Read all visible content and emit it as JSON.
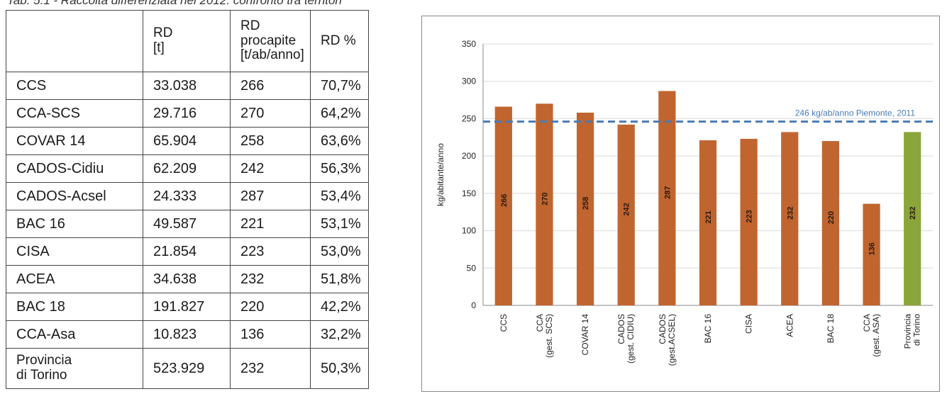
{
  "caption": "Tab. 5.1 - Raccolta differenziata nel 2012: confronto tra territori",
  "table": {
    "headers": [
      "",
      "RD\n[t]",
      "RD\nprocapite\n[t/ab/anno]",
      "RD %"
    ],
    "rows": [
      [
        "CCS",
        "33.038",
        "266",
        "70,7%"
      ],
      [
        "CCA-SCS",
        "29.716",
        "270",
        "64,2%"
      ],
      [
        "COVAR 14",
        "65.904",
        "258",
        "63,6%"
      ],
      [
        "CADOS-Cidiu",
        "62.209",
        "242",
        "56,3%"
      ],
      [
        "CADOS-Acsel",
        "24.333",
        "287",
        "53,4%"
      ],
      [
        "BAC 16",
        "49.587",
        "221",
        "53,1%"
      ],
      [
        "CISA",
        "21.854",
        "223",
        "53,0%"
      ],
      [
        "ACEA",
        "34.638",
        "232",
        "51,8%"
      ],
      [
        "BAC 18",
        "191.827",
        "220",
        "42,2%"
      ],
      [
        "CCA-Asa",
        "10.823",
        "136",
        "32,2%"
      ],
      [
        "Provincia\ndi Torino",
        "523.929",
        "232",
        "50,3%"
      ]
    ]
  },
  "chart_data": {
    "type": "bar",
    "ylabel": "kg/abitante/anno",
    "ylim": [
      0,
      350
    ],
    "yticks": [
      0,
      50,
      100,
      150,
      200,
      250,
      300,
      350
    ],
    "grid": true,
    "categories": [
      "CCS",
      "CCA\n(gest. SCS)",
      "COVAR 14",
      "CADOS\n(gest. CIDIU)",
      "CADOS\n(gest.ACSEL)",
      "BAC 16",
      "CISA",
      "ACEA",
      "BAC 18",
      "CCA\n(gest. ASA)",
      "Provincia\ndi Torino"
    ],
    "values": [
      266,
      270,
      258,
      242,
      287,
      221,
      223,
      232,
      220,
      136,
      232
    ],
    "data_labels": [
      "266",
      "270",
      "258",
      "242",
      "287",
      "221",
      "223",
      "232",
      "220",
      "136",
      "232"
    ],
    "bar_colors": [
      "#c0652f",
      "#c0652f",
      "#c0652f",
      "#c0652f",
      "#c0652f",
      "#c0652f",
      "#c0652f",
      "#c0652f",
      "#c0652f",
      "#c0652f",
      "#8aa53a"
    ],
    "reference_line": {
      "value": 246,
      "label": "246 kg/ab/anno Piemonte, 2011",
      "color": "#4a7ab5"
    }
  }
}
